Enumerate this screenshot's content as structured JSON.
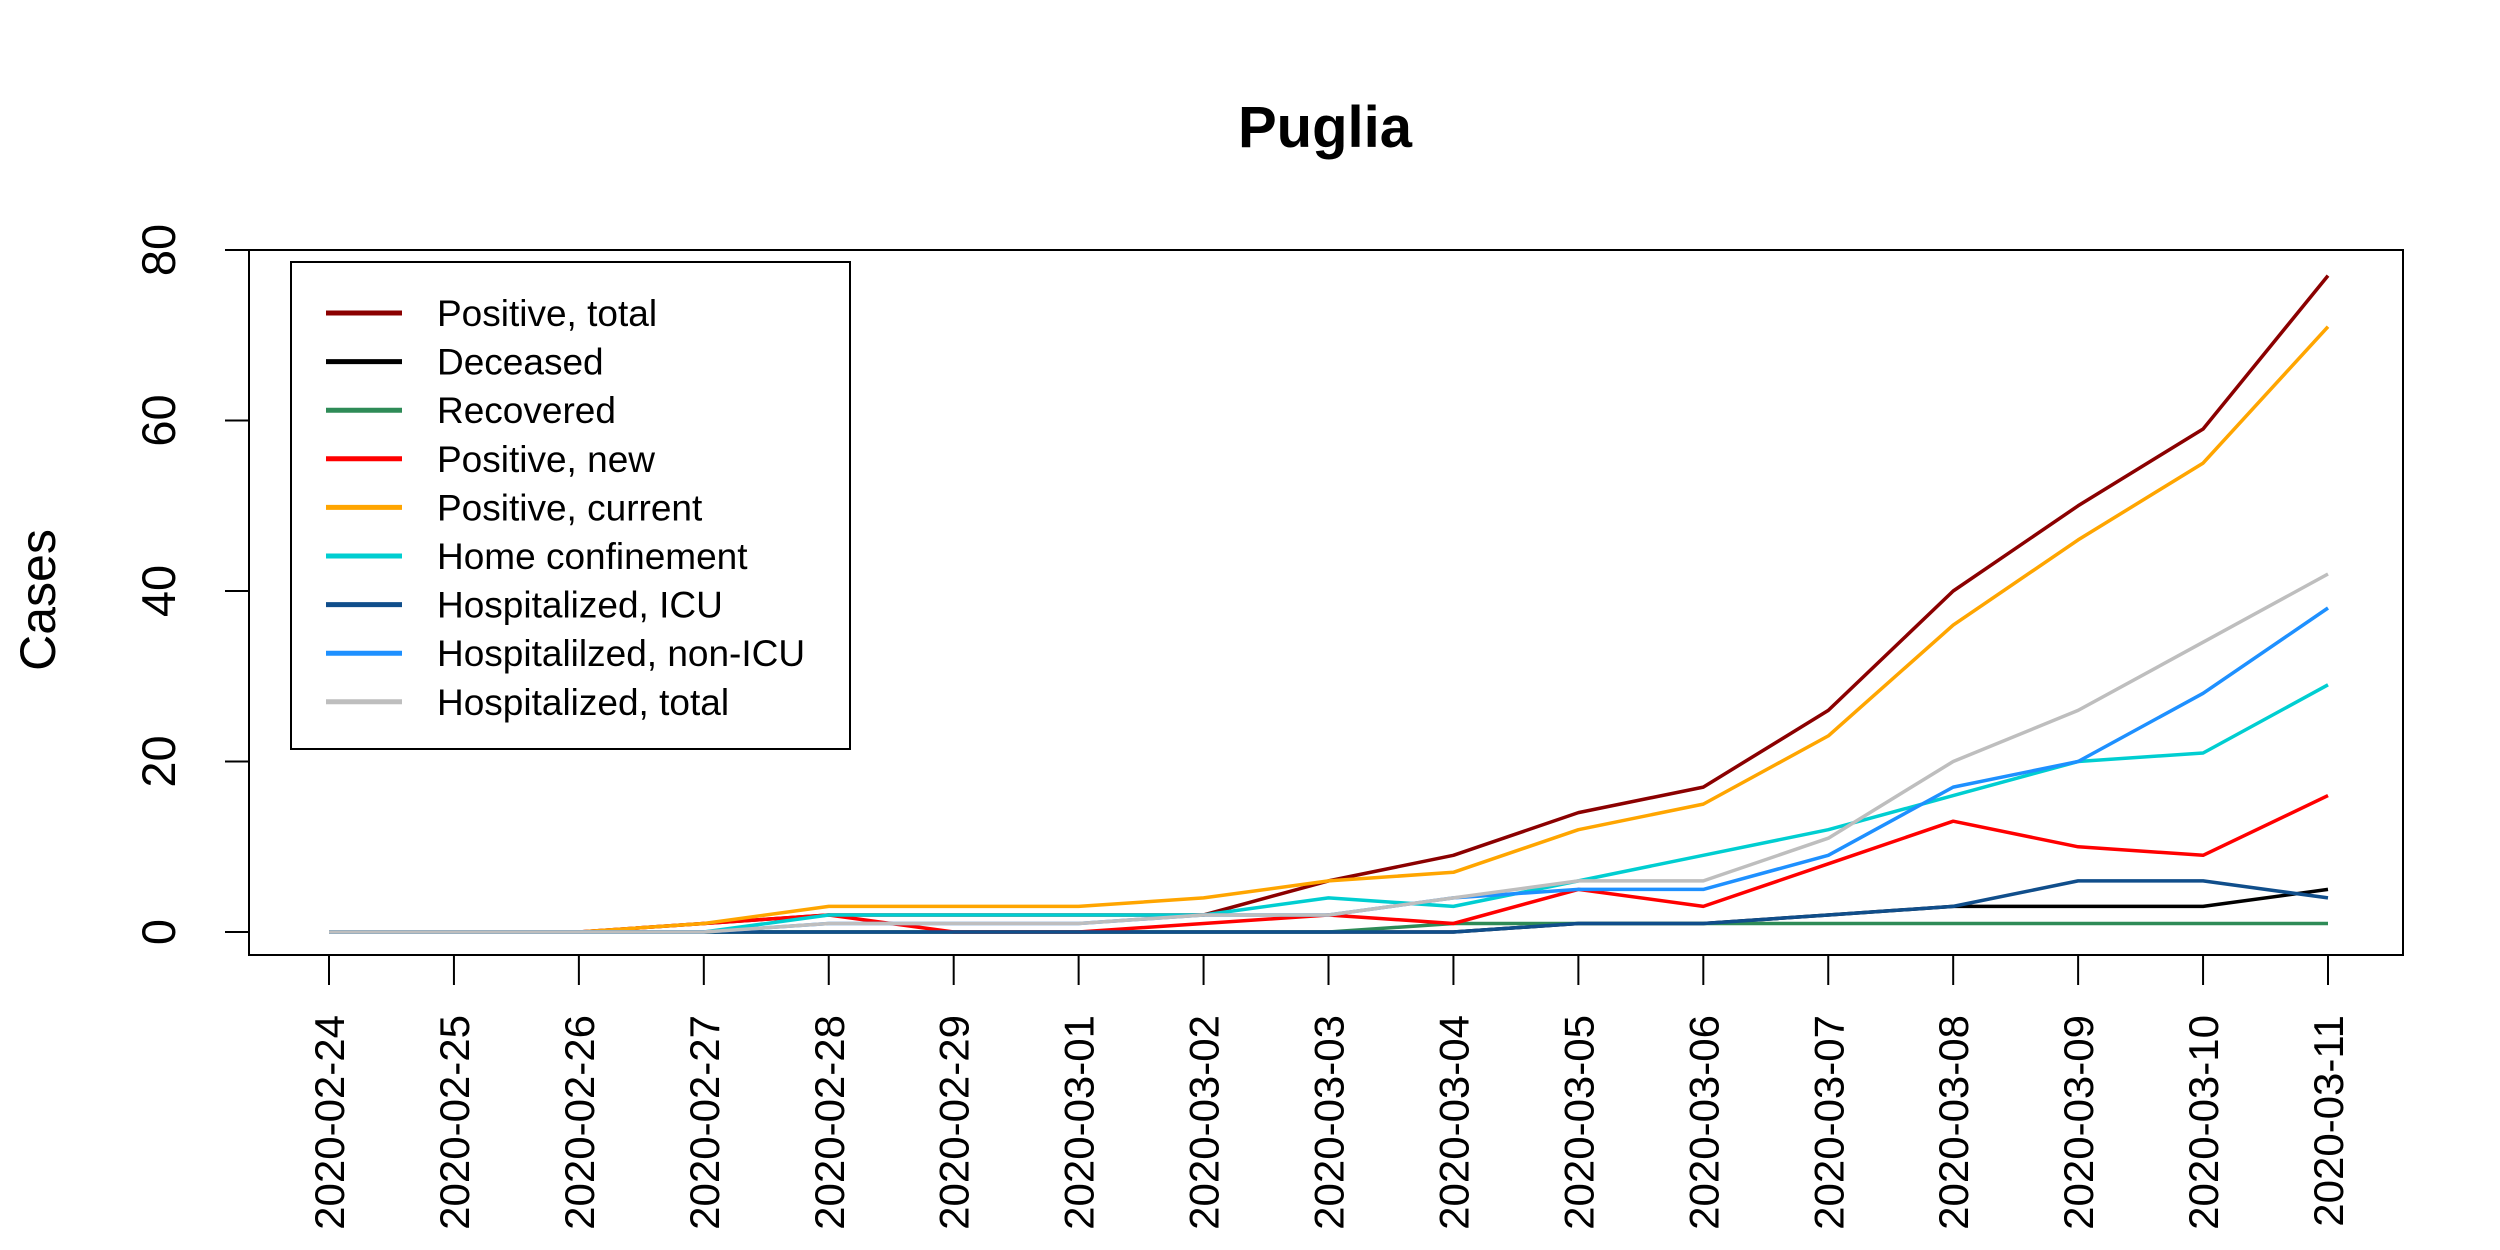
{
  "chart_data": {
    "type": "line",
    "title": "Puglia",
    "xlabel": "",
    "ylabel": "Cases",
    "ylim": [
      0,
      80
    ],
    "yticks": [
      0,
      20,
      40,
      60,
      80
    ],
    "grid": false,
    "legend_position": "top-left",
    "x": [
      "2020-02-24",
      "2020-02-25",
      "2020-02-26",
      "2020-02-27",
      "2020-02-28",
      "2020-02-29",
      "2020-03-01",
      "2020-03-02",
      "2020-03-03",
      "2020-03-04",
      "2020-03-05",
      "2020-03-06",
      "2020-03-07",
      "2020-03-08",
      "2020-03-09",
      "2020-03-10",
      "2020-03-11"
    ],
    "series": [
      {
        "name": "Positive, total",
        "color": "#8b0000",
        "values": [
          0,
          0,
          0,
          1,
          2,
          2,
          2,
          2,
          6,
          9,
          14,
          17,
          26,
          40,
          50,
          59,
          77
        ]
      },
      {
        "name": "Deceased",
        "color": "#000000",
        "values": [
          0,
          0,
          0,
          0,
          0,
          0,
          0,
          0,
          0,
          0,
          1,
          1,
          2,
          3,
          3,
          3,
          5
        ]
      },
      {
        "name": "Recovered",
        "color": "#2e8b57",
        "values": [
          0,
          0,
          0,
          0,
          0,
          0,
          0,
          0,
          0,
          1,
          1,
          1,
          1,
          1,
          1,
          1,
          1
        ]
      },
      {
        "name": "Positive, new",
        "color": "#ff0000",
        "values": [
          0,
          0,
          0,
          1,
          2,
          0,
          0,
          1,
          2,
          1,
          5,
          3,
          8,
          13,
          10,
          9,
          16
        ]
      },
      {
        "name": "Positive, current",
        "color": "#ffa500",
        "values": [
          0,
          0,
          0,
          1,
          3,
          3,
          3,
          4,
          6,
          7,
          12,
          15,
          23,
          36,
          46,
          55,
          71
        ]
      },
      {
        "name": "Home confinement",
        "color": "#00ced1",
        "values": [
          0,
          0,
          0,
          0,
          2,
          2,
          2,
          2,
          4,
          3,
          6,
          9,
          12,
          16,
          20,
          21,
          29
        ]
      },
      {
        "name": "Hospitalized, ICU",
        "color": "#104e8b",
        "values": [
          0,
          0,
          0,
          0,
          0,
          0,
          0,
          0,
          0,
          0,
          1,
          1,
          2,
          3,
          6,
          6,
          4
        ]
      },
      {
        "name": "Hospitalilzed, non-ICU",
        "color": "#1e90ff",
        "values": [
          0,
          0,
          0,
          0,
          1,
          1,
          1,
          2,
          2,
          4,
          5,
          5,
          9,
          17,
          20,
          28,
          38
        ]
      },
      {
        "name": "Hospitalized, total",
        "color": "#bebebe",
        "values": [
          0,
          0,
          0,
          0,
          1,
          1,
          1,
          2,
          2,
          4,
          6,
          6,
          11,
          20,
          26,
          34,
          42
        ]
      }
    ]
  }
}
